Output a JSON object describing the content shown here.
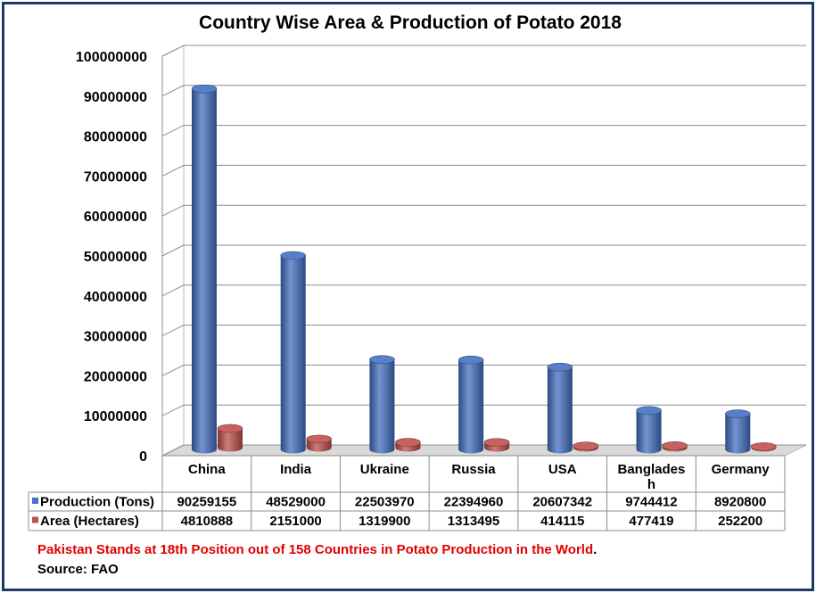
{
  "chart_data": {
    "type": "bar",
    "title": "Country Wise Area & Production of Potato 2018",
    "categories": [
      "China",
      "India",
      "Ukraine",
      "Russia",
      "USA",
      "Banglades h",
      "Germany"
    ],
    "series": [
      {
        "name": "Production (Tons)",
        "color": "#4472c4",
        "values": [
          90259155,
          48529000,
          22503970,
          22394960,
          20607342,
          9744412,
          8920800
        ]
      },
      {
        "name": "Area (Hectares)",
        "color": "#c0504d",
        "values": [
          4810888,
          2151000,
          1319900,
          1313495,
          414115,
          477419,
          252200
        ]
      }
    ],
    "ylim": [
      0,
      100000000
    ],
    "yticks": [
      0,
      10000000,
      20000000,
      30000000,
      40000000,
      50000000,
      60000000,
      70000000,
      80000000,
      90000000,
      100000000
    ],
    "ytick_labels": [
      "0",
      "10000000",
      "20000000",
      "30000000",
      "40000000",
      "50000000",
      "60000000",
      "70000000",
      "80000000",
      "90000000",
      "100000000"
    ],
    "grid": true,
    "legend": "data-table"
  },
  "footnote": {
    "main": "Pakistan Stands at 18th Position out of 158 Countries in Potato Production in the World",
    "period": ".",
    "source": "Source: FAO"
  }
}
